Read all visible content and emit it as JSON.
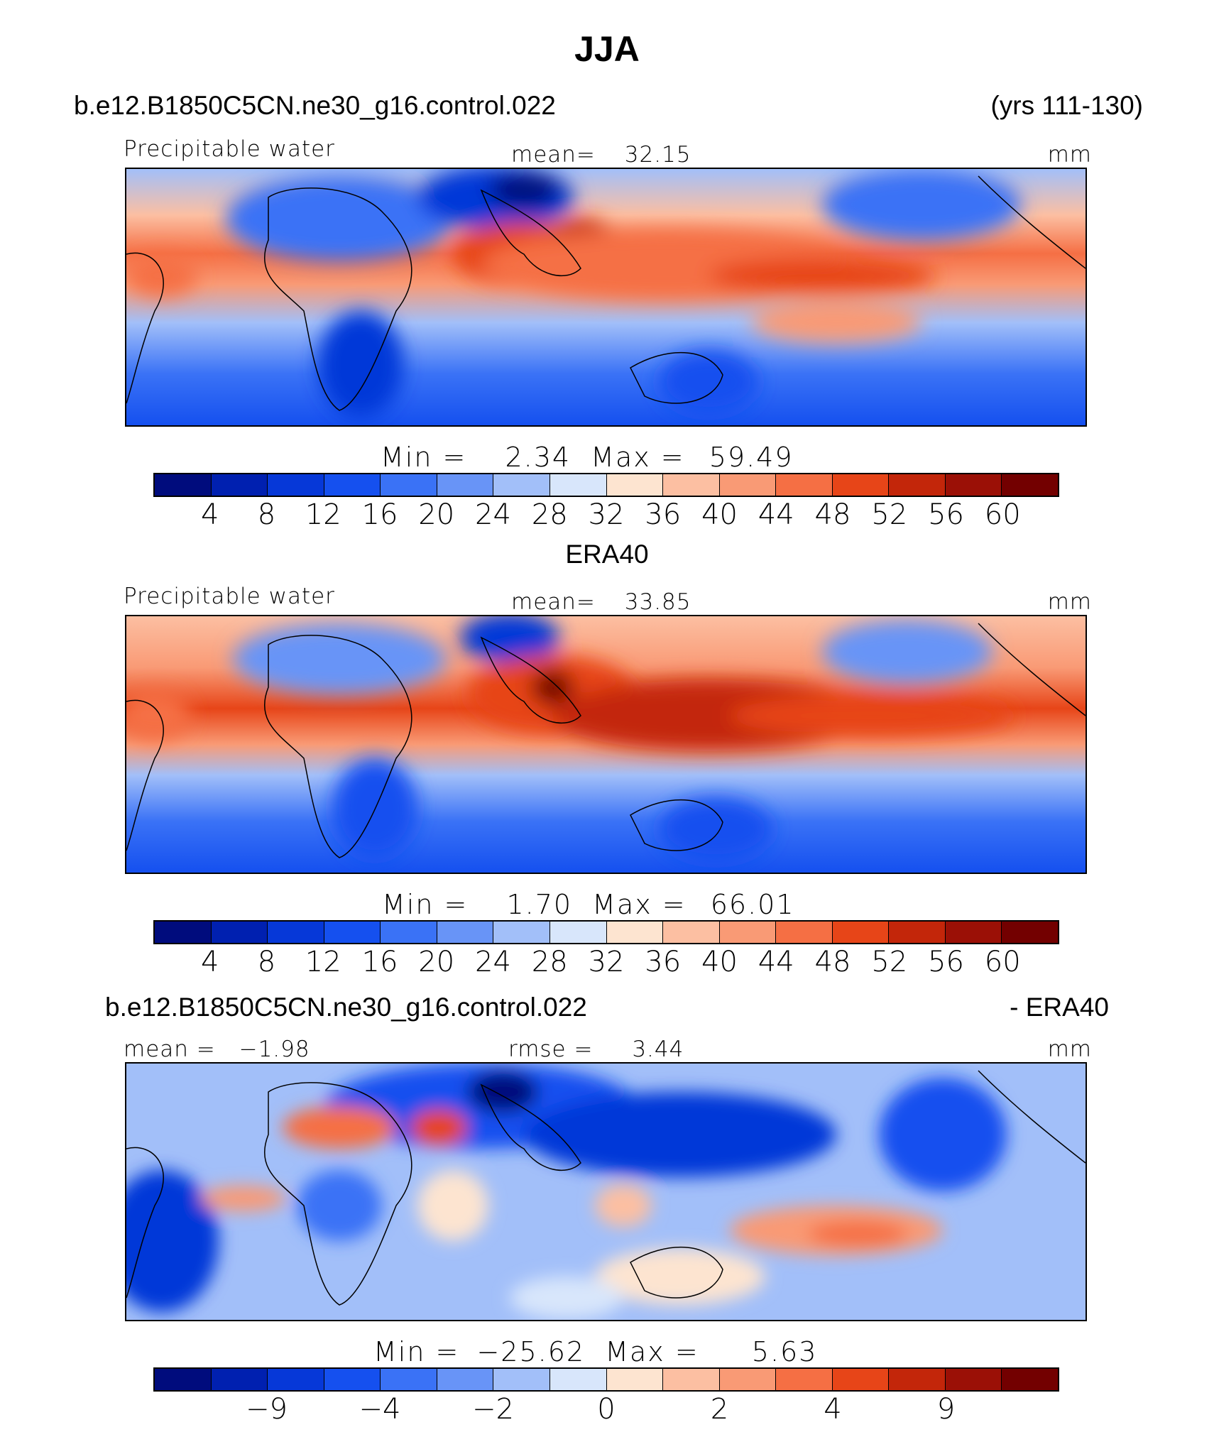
{
  "figure": {
    "title": "JJA",
    "case_name": "b.e12.B1850C5CN.ne30_g16.control.022",
    "years": "(yrs 111-130)",
    "obs_name": "ERA40",
    "diff_suffix": "- ERA40"
  },
  "colors": [
    "#000c7d",
    "#0020b0",
    "#0638d8",
    "#1550ef",
    "#3a72f6",
    "#6894f7",
    "#a2bff9",
    "#d8e6fb",
    "#fde4d0",
    "#fcbfa2",
    "#f99a75",
    "#f56f44",
    "#e74518",
    "#c3260a",
    "#9b1006",
    "#730000"
  ],
  "chart_data": [
    {
      "type": "heatmap",
      "panel": "model",
      "left_label": "Precipitable water",
      "center_label": "mean=",
      "center_value": "32.15",
      "units": "mm",
      "min_label": "Min =",
      "min_value": "2.34",
      "max_label": "Max =",
      "max_value": "59.49",
      "levels": [
        "4",
        "8",
        "12",
        "16",
        "20",
        "24",
        "28",
        "32",
        "36",
        "40",
        "44",
        "48",
        "52",
        "56",
        "60"
      ]
    },
    {
      "type": "heatmap",
      "panel": "obs",
      "left_label": "Precipitable water",
      "center_label": "mean=",
      "center_value": "33.85",
      "units": "mm",
      "min_label": "Min =",
      "min_value": "1.70",
      "max_label": "Max =",
      "max_value": "66.01",
      "levels": [
        "4",
        "8",
        "12",
        "16",
        "20",
        "24",
        "28",
        "32",
        "36",
        "40",
        "44",
        "48",
        "52",
        "56",
        "60"
      ]
    },
    {
      "type": "heatmap",
      "panel": "difference",
      "left_label": "mean =",
      "left_value": "−1.98",
      "center_label": "rmse =",
      "center_value": "3.44",
      "units": "mm",
      "min_label": "Min =",
      "min_value": "−25.62",
      "max_label": "Max =",
      "max_value": "5.63",
      "levels": [
        "",
        "−9",
        "",
        "−4",
        "",
        "−2",
        "",
        "0",
        "",
        "2",
        "",
        "4",
        "",
        "9",
        ""
      ]
    }
  ]
}
